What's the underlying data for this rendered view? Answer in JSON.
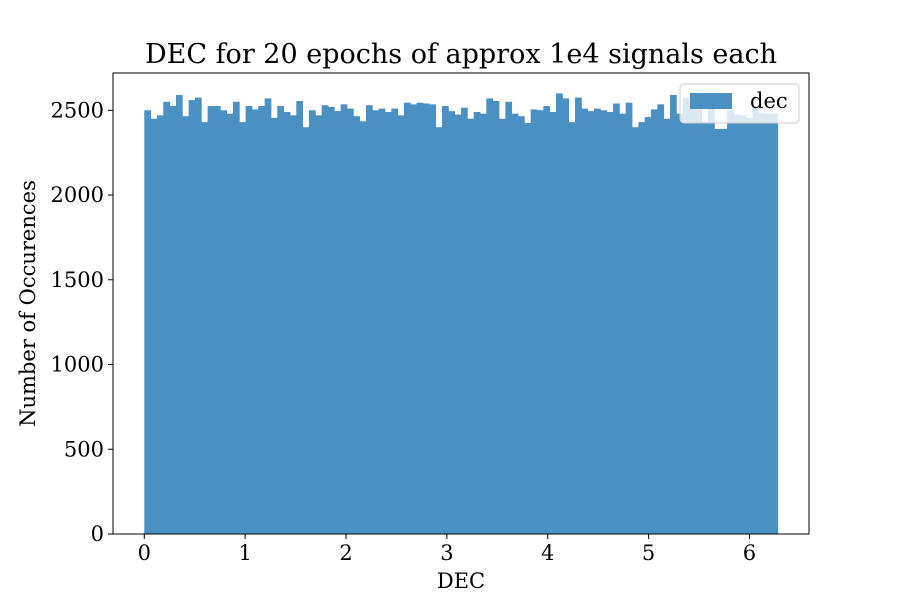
{
  "chart_data": {
    "type": "bar",
    "title": "DEC for 20 epochs of approx 1e4 signals each",
    "xlabel": "DEC",
    "ylabel": "Number of Occurences",
    "xlim": [
      -0.31,
      6.59
    ],
    "ylim": [
      0,
      2720
    ],
    "xticks": [
      0,
      1,
      2,
      3,
      4,
      5,
      6
    ],
    "yticks": [
      0,
      500,
      1000,
      1500,
      2000,
      2500
    ],
    "legend": {
      "position": "top-right",
      "entries": [
        "dec"
      ]
    },
    "bar_color": "#4a90c2",
    "bin_start": 0,
    "bin_width": 0.0628,
    "series": [
      {
        "name": "dec",
        "values": [
          2500,
          2450,
          2470,
          2550,
          2525,
          2590,
          2465,
          2560,
          2575,
          2430,
          2525,
          2525,
          2500,
          2480,
          2550,
          2430,
          2525,
          2505,
          2525,
          2570,
          2455,
          2525,
          2490,
          2470,
          2555,
          2400,
          2500,
          2470,
          2530,
          2520,
          2495,
          2535,
          2510,
          2465,
          2435,
          2530,
          2500,
          2510,
          2490,
          2510,
          2470,
          2545,
          2535,
          2545,
          2540,
          2535,
          2400,
          2525,
          2495,
          2475,
          2515,
          2450,
          2490,
          2480,
          2570,
          2555,
          2450,
          2550,
          2480,
          2465,
          2425,
          2505,
          2500,
          2525,
          2490,
          2600,
          2570,
          2430,
          2575,
          2510,
          2495,
          2510,
          2500,
          2490,
          2540,
          2480,
          2545,
          2400,
          2430,
          2460,
          2505,
          2535,
          2450,
          2590,
          2480,
          2575,
          2545,
          2505,
          2430,
          2510,
          2390,
          2390,
          2500,
          2475,
          2470,
          2455,
          2520,
          2485,
          2480,
          2480
        ]
      }
    ]
  }
}
